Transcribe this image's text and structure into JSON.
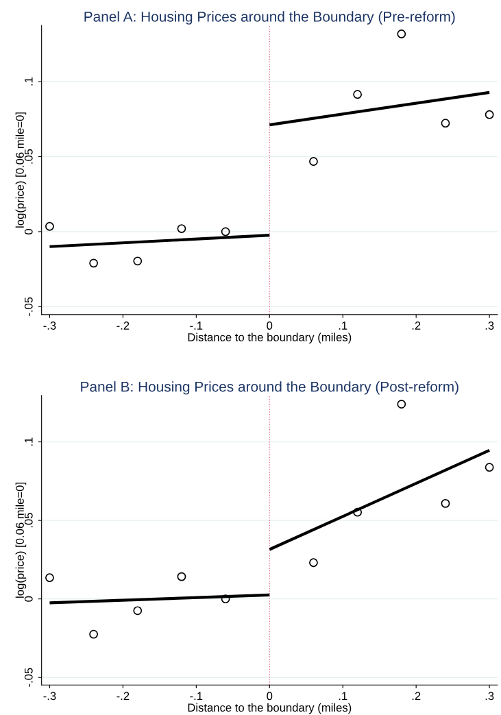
{
  "chart_data": [
    {
      "type": "scatter",
      "title": "Panel A: Housing Prices around the Boundary (Pre-reform)",
      "xlabel": "Distance to the boundary (miles)",
      "ylabel": "log(price) [0.06 mile=0]",
      "xlim": [
        -0.311,
        0.311
      ],
      "ylim": [
        -0.0553,
        0.1375
      ],
      "xticks": [
        {
          "value": -0.3,
          "label": "-.3"
        },
        {
          "value": -0.2,
          "label": "-.2"
        },
        {
          "value": -0.1,
          "label": "-.1"
        },
        0,
        {
          "value": 0.1,
          "label": ".1"
        },
        {
          "value": 0.2,
          "label": ".2"
        },
        {
          "value": 0.3,
          "label": ".3"
        }
      ],
      "yticks": [
        {
          "value": -0.05,
          "label": "-.05"
        },
        0,
        {
          "value": 0.05,
          "label": ".05"
        },
        {
          "value": 0.1,
          "label": ".1"
        }
      ],
      "grid": "y",
      "ref_lines": [
        {
          "axis": "x",
          "value": 0,
          "color": "#e8768a",
          "line_style": "dotted"
        }
      ],
      "series": [
        {
          "marker": "circle",
          "color": "#000000",
          "x": [
            -0.3,
            -0.24,
            -0.18,
            -0.12,
            -0.06,
            0.06,
            0.12,
            0.18,
            0.24,
            0.3
          ],
          "values": [
            0.0035,
            -0.021,
            -0.0196,
            0.002,
            0.0,
            0.0468,
            0.0915,
            0.1318,
            0.0723,
            0.078
          ]
        },
        {
          "type": "line",
          "color": "#000000",
          "x": [
            -0.3,
            0
          ],
          "values": [
            -0.01,
            -0.0024
          ]
        },
        {
          "type": "line",
          "color": "#000000",
          "x": [
            0,
            0.3
          ],
          "values": [
            0.0712,
            0.0928
          ]
        }
      ]
    },
    {
      "type": "scatter",
      "title": "Panel B: Housing Prices around the Boundary (Post-reform)",
      "xlabel": "Distance to the boundary (miles)",
      "ylabel": "log(price) [0.06 mile=0]",
      "xlim": [
        -0.311,
        0.311
      ],
      "ylim": [
        -0.0548,
        0.1296
      ],
      "xticks": [
        {
          "value": -0.3,
          "label": "-.3"
        },
        {
          "value": -0.2,
          "label": "-.2"
        },
        {
          "value": -0.1,
          "label": "-.1"
        },
        0,
        {
          "value": 0.1,
          "label": ".1"
        },
        {
          "value": 0.2,
          "label": ".2"
        },
        {
          "value": 0.3,
          "label": ".3"
        }
      ],
      "yticks": [
        {
          "value": -0.05,
          "label": "-.05"
        },
        0,
        {
          "value": 0.05,
          "label": ".05"
        },
        {
          "value": 0.1,
          "label": ".1"
        }
      ],
      "grid": "y",
      "ref_lines": [
        {
          "axis": "x",
          "value": 0,
          "color": "#e8768a",
          "line_style": "dotted"
        }
      ],
      "series": [
        {
          "marker": "circle",
          "color": "#000000",
          "x": [
            -0.3,
            -0.24,
            -0.18,
            -0.12,
            -0.06,
            0.06,
            0.12,
            0.18,
            0.24,
            0.3
          ],
          "values": [
            0.0135,
            -0.0225,
            -0.0075,
            0.0142,
            0.0,
            0.0231,
            0.0552,
            0.124,
            0.0608,
            0.0838
          ]
        },
        {
          "type": "line",
          "color": "#000000",
          "x": [
            -0.3,
            0
          ],
          "values": [
            -0.0025,
            0.0025
          ]
        },
        {
          "type": "line",
          "color": "#000000",
          "x": [
            0,
            0.3
          ],
          "values": [
            0.0315,
            0.0946
          ]
        }
      ]
    }
  ]
}
